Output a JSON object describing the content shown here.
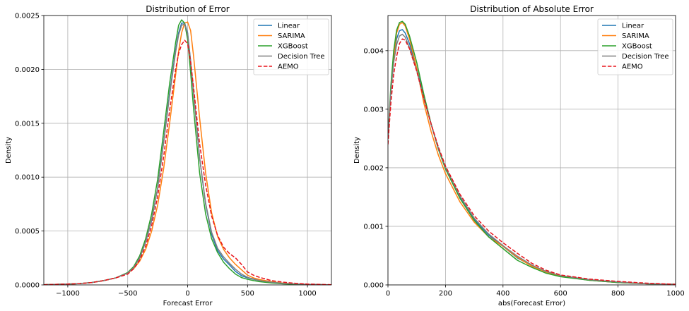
{
  "chart_data": [
    {
      "type": "line",
      "title": "Distribution of Error",
      "xlabel": "Forecast Error",
      "ylabel": "Density",
      "xlim": [
        -1200,
        1200
      ],
      "ylim": [
        0,
        0.0025
      ],
      "xticks": [
        -1000,
        -500,
        0,
        500,
        1000
      ],
      "xtick_labels": [
        "−1000",
        "−500",
        "0",
        "500",
        "1000"
      ],
      "yticks": [
        0,
        0.0005,
        0.001,
        0.0015,
        0.002,
        0.0025
      ],
      "ytick_labels": [
        "0.0000",
        "0.0005",
        "0.0010",
        "0.0015",
        "0.0020",
        "0.0025"
      ],
      "grid": true,
      "legend_position": "top-right",
      "series": [
        {
          "name": "Linear",
          "color": "#1f77b4",
          "dash": "solid",
          "x": [
            -1200,
            -1000,
            -900,
            -800,
            -700,
            -600,
            -500,
            -450,
            -400,
            -350,
            -300,
            -250,
            -200,
            -150,
            -100,
            -75,
            -50,
            -25,
            0,
            25,
            50,
            100,
            150,
            200,
            250,
            300,
            350,
            400,
            450,
            500,
            550,
            600,
            700,
            800,
            900,
            1000,
            1200
          ],
          "y": [
            2e-06,
            8e-06,
            1.2e-05,
            2.2e-05,
            4e-05,
            6.5e-05,
            0.00011,
            0.00016,
            0.00025,
            0.0004,
            0.0006,
            0.0009,
            0.00133,
            0.00178,
            0.00218,
            0.00234,
            0.00243,
            0.00243,
            0.00234,
            0.00208,
            0.00178,
            0.00118,
            0.00075,
            0.00047,
            0.00032,
            0.00024,
            0.000185,
            0.000125,
            8.5e-05,
            6.5e-05,
            5.2e-05,
            4e-05,
            2.5e-05,
            1.5e-05,
            9e-06,
            5e-06,
            1e-06
          ]
        },
        {
          "name": "SARIMA",
          "color": "#ff7f0e",
          "dash": "solid",
          "x": [
            -1200,
            -1000,
            -900,
            -800,
            -700,
            -600,
            -500,
            -450,
            -400,
            -350,
            -300,
            -250,
            -200,
            -150,
            -100,
            -75,
            -50,
            -25,
            0,
            25,
            50,
            100,
            150,
            200,
            250,
            300,
            350,
            400,
            450,
            500,
            550,
            600,
            700,
            800,
            900,
            1000,
            1200
          ],
          "y": [
            2e-06,
            8e-06,
            1.2e-05,
            2.2e-05,
            4e-05,
            6.5e-05,
            0.00011,
            0.00015,
            0.00022,
            0.00033,
            0.0005,
            0.00074,
            0.00108,
            0.0015,
            0.00195,
            0.00217,
            0.00234,
            0.00243,
            0.00244,
            0.00236,
            0.00212,
            0.00155,
            0.00104,
            0.00067,
            0.00045,
            0.00033,
            0.00025,
            0.00019,
            0.00014,
            9e-05,
            6.5e-05,
            5e-05,
            3e-05,
            1.6e-05,
            1e-05,
            5e-06,
            1e-06
          ]
        },
        {
          "name": "XGBoost",
          "color": "#2ca02c",
          "dash": "solid",
          "x": [
            -1200,
            -1000,
            -900,
            -800,
            -700,
            -600,
            -500,
            -450,
            -400,
            -350,
            -300,
            -250,
            -200,
            -150,
            -100,
            -75,
            -50,
            -25,
            0,
            25,
            50,
            100,
            150,
            200,
            250,
            300,
            350,
            400,
            450,
            500,
            550,
            600,
            700,
            800,
            900,
            1000,
            1200
          ],
          "y": [
            2e-06,
            8e-06,
            1.2e-05,
            2.2e-05,
            4e-05,
            6.5e-05,
            0.000115,
            0.00017,
            0.00027,
            0.00043,
            0.00066,
            0.00098,
            0.00142,
            0.00187,
            0.00225,
            0.00241,
            0.00246,
            0.00243,
            0.00228,
            0.00197,
            0.00163,
            0.00104,
            0.00066,
            0.00043,
            0.0003,
            0.00021,
            0.00015,
            0.0001,
            6.8e-05,
            5.2e-05,
            4e-05,
            3e-05,
            1.8e-05,
            1e-05,
            6e-06,
            4e-06,
            1e-06
          ]
        },
        {
          "name": "Decision Tree",
          "color": "#7f7f7f",
          "dash": "solid",
          "x": [
            -1200,
            -1000,
            -900,
            -800,
            -700,
            -600,
            -500,
            -450,
            -400,
            -350,
            -300,
            -250,
            -200,
            -150,
            -100,
            -75,
            -50,
            -25,
            0,
            25,
            50,
            100,
            150,
            200,
            250,
            300,
            350,
            400,
            450,
            500,
            550,
            600,
            700,
            800,
            900,
            1000,
            1200
          ],
          "y": [
            2e-06,
            8e-06,
            1.2e-05,
            2.2e-05,
            4e-05,
            6.5e-05,
            0.00011,
            0.00016,
            0.00025,
            0.0004,
            0.00061,
            0.0009,
            0.00132,
            0.00176,
            0.00216,
            0.00232,
            0.00241,
            0.00242,
            0.00233,
            0.00207,
            0.00177,
            0.00118,
            0.00076,
            0.00049,
            0.00034,
            0.00026,
            0.0002,
            0.000145,
            0.0001,
            7e-05,
            5.5e-05,
            4e-05,
            2.5e-05,
            1.4e-05,
            9e-06,
            5e-06,
            1e-06
          ]
        },
        {
          "name": "AEMO",
          "color": "#e8141c",
          "dash": "dashed",
          "x": [
            -1200,
            -1000,
            -900,
            -800,
            -700,
            -600,
            -500,
            -450,
            -400,
            -350,
            -300,
            -250,
            -200,
            -150,
            -100,
            -75,
            -50,
            -25,
            0,
            25,
            50,
            100,
            150,
            200,
            250,
            300,
            350,
            400,
            450,
            500,
            550,
            600,
            700,
            800,
            900,
            1000,
            1200
          ],
          "y": [
            2e-06,
            8e-06,
            1.2e-05,
            2.2e-05,
            4e-05,
            6.5e-05,
            0.0001,
            0.00015,
            0.00023,
            0.00036,
            0.00055,
            0.00082,
            0.00119,
            0.00162,
            0.002,
            0.00215,
            0.00223,
            0.00227,
            0.00224,
            0.00207,
            0.00183,
            0.00131,
            0.00093,
            0.00064,
            0.00046,
            0.00035,
            0.00029,
            0.00025,
            0.00019,
            0.00012,
            9e-05,
            7e-05,
            4e-05,
            2.5e-05,
            1.5e-05,
            8e-06,
            2e-06
          ]
        }
      ]
    },
    {
      "type": "line",
      "title": "Distribution of Absolute Error",
      "xlabel": "abs(Forecast Error)",
      "ylabel": "Density",
      "xlim": [
        0,
        1000
      ],
      "ylim": [
        0,
        0.0046
      ],
      "xticks": [
        0,
        200,
        400,
        600,
        800,
        1000
      ],
      "xtick_labels": [
        "0",
        "200",
        "400",
        "600",
        "800",
        "1000"
      ],
      "yticks": [
        0,
        0.001,
        0.002,
        0.003,
        0.004
      ],
      "ytick_labels": [
        "0.000",
        "0.001",
        "0.002",
        "0.003",
        "0.004"
      ],
      "grid": true,
      "legend_position": "top-right",
      "series": [
        {
          "name": "Linear",
          "color": "#1f77b4",
          "dash": "solid",
          "x": [
            0,
            10,
            20,
            30,
            40,
            50,
            60,
            75,
            100,
            125,
            150,
            175,
            200,
            250,
            300,
            350,
            400,
            450,
            500,
            550,
            600,
            700,
            800,
            900,
            1000
          ],
          "y": [
            0.0025,
            0.0033,
            0.0039,
            0.0042,
            0.00434,
            0.00436,
            0.0043,
            0.00412,
            0.0037,
            0.0032,
            0.00275,
            0.00233,
            0.002,
            0.0015,
            0.00112,
            0.00085,
            0.00066,
            0.00046,
            0.00033,
            0.00022,
            0.00015,
            8e-05,
            4e-05,
            2e-05,
            1e-05
          ]
        },
        {
          "name": "SARIMA",
          "color": "#ff7f0e",
          "dash": "solid",
          "x": [
            0,
            10,
            20,
            30,
            40,
            50,
            60,
            75,
            100,
            125,
            150,
            175,
            200,
            250,
            300,
            350,
            400,
            450,
            500,
            550,
            600,
            700,
            800,
            900,
            1000
          ],
          "y": [
            0.0025,
            0.0033,
            0.0039,
            0.0043,
            0.00445,
            0.00448,
            0.00442,
            0.0042,
            0.0037,
            0.0031,
            0.00262,
            0.00222,
            0.0019,
            0.00142,
            0.00107,
            0.00082,
            0.00066,
            0.00047,
            0.00032,
            0.00022,
            0.00015,
            8e-05,
            4e-05,
            2e-05,
            1e-05
          ]
        },
        {
          "name": "XGBoost",
          "color": "#2ca02c",
          "dash": "solid",
          "x": [
            0,
            10,
            20,
            30,
            40,
            50,
            60,
            75,
            100,
            125,
            150,
            175,
            200,
            250,
            300,
            350,
            400,
            450,
            500,
            550,
            600,
            700,
            800,
            900,
            1000
          ],
          "y": [
            0.0025,
            0.0034,
            0.004,
            0.00435,
            0.00448,
            0.0045,
            0.00445,
            0.00425,
            0.0038,
            0.00325,
            0.00275,
            0.00232,
            0.00198,
            0.00148,
            0.0011,
            0.00082,
            0.00062,
            0.00042,
            0.0003,
            0.0002,
            0.00014,
            8e-05,
            4e-05,
            2e-05,
            1e-05
          ]
        },
        {
          "name": "Decision Tree",
          "color": "#7f7f7f",
          "dash": "solid",
          "x": [
            0,
            10,
            20,
            30,
            40,
            50,
            60,
            75,
            100,
            125,
            150,
            175,
            200,
            250,
            300,
            350,
            400,
            450,
            500,
            550,
            600,
            700,
            800,
            900,
            1000
          ],
          "y": [
            0.0025,
            0.0033,
            0.0038,
            0.0041,
            0.00425,
            0.00428,
            0.00423,
            0.00405,
            0.00366,
            0.00318,
            0.00274,
            0.00234,
            0.00201,
            0.00152,
            0.00114,
            0.00087,
            0.00067,
            0.00049,
            0.00034,
            0.00023,
            0.00016,
            9e-05,
            5e-05,
            2e-05,
            1e-05
          ]
        },
        {
          "name": "AEMO",
          "color": "#e8141c",
          "dash": "dashed",
          "x": [
            0,
            10,
            20,
            30,
            40,
            50,
            60,
            75,
            100,
            125,
            150,
            175,
            200,
            250,
            300,
            350,
            400,
            450,
            500,
            550,
            600,
            700,
            800,
            900,
            1000
          ],
          "y": [
            0.0024,
            0.0031,
            0.0036,
            0.0039,
            0.00412,
            0.0042,
            0.00418,
            0.00403,
            0.00365,
            0.00318,
            0.00275,
            0.00236,
            0.00203,
            0.00155,
            0.00118,
            0.00092,
            0.00072,
            0.00054,
            0.00037,
            0.00025,
            0.00017,
            0.0001,
            6e-05,
            3e-05,
            1e-05
          ]
        }
      ]
    }
  ]
}
